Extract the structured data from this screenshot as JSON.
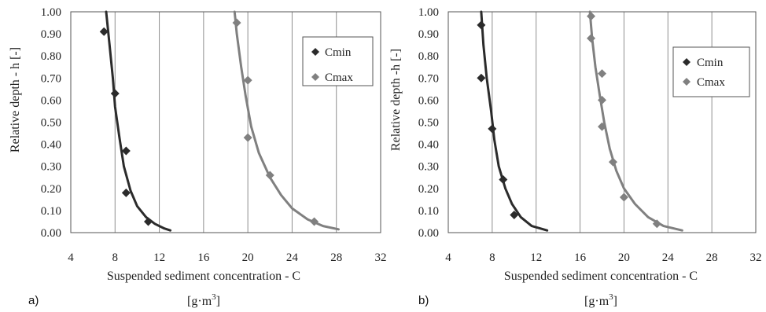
{
  "chart_data": [
    {
      "type": "scatter",
      "panel_label": "a)",
      "xlabel": "Suspended sediment concentration - C",
      "xunit": "[g·m3]",
      "ylabel": "Relative depth - h [-]",
      "xlim": [
        4,
        32
      ],
      "ylim": [
        0,
        1
      ],
      "x_ticks": [
        "4",
        "8",
        "12",
        "16",
        "20",
        "24",
        "28",
        "32"
      ],
      "y_ticks": [
        "0.00",
        "0.10",
        "0.20",
        "0.30",
        "0.40",
        "0.50",
        "0.60",
        "0.70",
        "0.80",
        "0.90",
        "1.00"
      ],
      "grid": "vertical",
      "legend_position": "top-right",
      "series": [
        {
          "name": "Cmin",
          "color": "#2b2b2b",
          "points": [
            [
              7.0,
              0.91
            ],
            [
              8.0,
              0.63
            ],
            [
              9.0,
              0.37
            ],
            [
              9.0,
              0.18
            ],
            [
              11.0,
              0.05
            ]
          ],
          "fit": [
            [
              7.2,
              1.0
            ],
            [
              7.5,
              0.85
            ],
            [
              7.8,
              0.7
            ],
            [
              8.0,
              0.57
            ],
            [
              8.4,
              0.43
            ],
            [
              8.8,
              0.3
            ],
            [
              9.4,
              0.19
            ],
            [
              10.0,
              0.12
            ],
            [
              10.8,
              0.07
            ],
            [
              11.6,
              0.04
            ],
            [
              12.4,
              0.02
            ],
            [
              13.0,
              0.01
            ]
          ]
        },
        {
          "name": "Cmax",
          "color": "#808080",
          "points": [
            [
              19.0,
              0.95
            ],
            [
              20.0,
              0.69
            ],
            [
              20.0,
              0.43
            ],
            [
              22.0,
              0.26
            ],
            [
              26.0,
              0.05
            ]
          ],
          "fit": [
            [
              18.8,
              1.0
            ],
            [
              19.0,
              0.9
            ],
            [
              19.4,
              0.75
            ],
            [
              19.8,
              0.62
            ],
            [
              20.3,
              0.48
            ],
            [
              21.0,
              0.36
            ],
            [
              22.0,
              0.25
            ],
            [
              23.0,
              0.17
            ],
            [
              24.0,
              0.11
            ],
            [
              25.4,
              0.06
            ],
            [
              26.8,
              0.03
            ],
            [
              28.2,
              0.015
            ]
          ]
        }
      ]
    },
    {
      "type": "scatter",
      "panel_label": "b)",
      "xlabel": "Suspended sediment concentration - C",
      "xunit": "[g·m3]",
      "ylabel": "Relative depth -h [-]",
      "xlim": [
        4,
        32
      ],
      "ylim": [
        0,
        1
      ],
      "x_ticks": [
        "4",
        "8",
        "12",
        "16",
        "20",
        "24",
        "28",
        "32"
      ],
      "y_ticks": [
        "0.00",
        "0.10",
        "0.20",
        "0.30",
        "0.40",
        "0.50",
        "0.60",
        "0.70",
        "0.80",
        "0.90",
        "1.00"
      ],
      "grid": "vertical",
      "legend_position": "right",
      "series": [
        {
          "name": "Cmin",
          "color": "#2b2b2b",
          "points": [
            [
              7.0,
              0.94
            ],
            [
              7.0,
              0.7
            ],
            [
              8.0,
              0.47
            ],
            [
              9.0,
              0.24
            ],
            [
              10.0,
              0.08
            ]
          ],
          "fit": [
            [
              7.0,
              1.0
            ],
            [
              7.2,
              0.85
            ],
            [
              7.5,
              0.7
            ],
            [
              7.9,
              0.55
            ],
            [
              8.2,
              0.42
            ],
            [
              8.6,
              0.3
            ],
            [
              9.2,
              0.2
            ],
            [
              9.8,
              0.13
            ],
            [
              10.6,
              0.07
            ],
            [
              11.6,
              0.03
            ],
            [
              13.0,
              0.01
            ]
          ]
        },
        {
          "name": "Cmax",
          "color": "#808080",
          "points": [
            [
              17.0,
              0.98
            ],
            [
              17.0,
              0.88
            ],
            [
              18.0,
              0.72
            ],
            [
              18.0,
              0.6
            ],
            [
              18.0,
              0.48
            ],
            [
              19.0,
              0.32
            ],
            [
              20.0,
              0.16
            ],
            [
              23.0,
              0.04
            ]
          ],
          "fit": [
            [
              16.9,
              1.0
            ],
            [
              17.1,
              0.88
            ],
            [
              17.4,
              0.75
            ],
            [
              17.8,
              0.62
            ],
            [
              18.2,
              0.5
            ],
            [
              18.7,
              0.38
            ],
            [
              19.3,
              0.28
            ],
            [
              20.0,
              0.2
            ],
            [
              21.0,
              0.13
            ],
            [
              22.2,
              0.07
            ],
            [
              23.6,
              0.03
            ],
            [
              25.3,
              0.01
            ]
          ]
        }
      ]
    }
  ]
}
